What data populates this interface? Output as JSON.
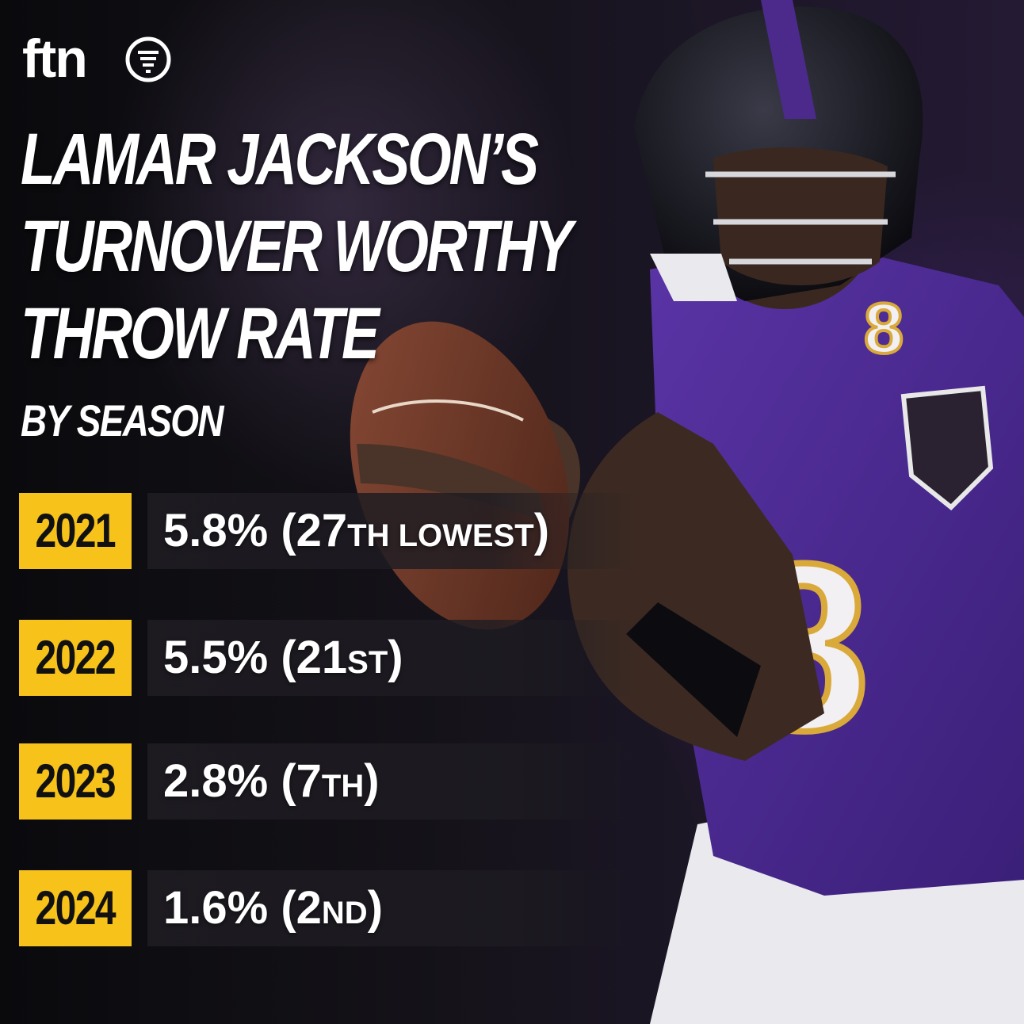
{
  "brand": {
    "logo_text": "ftn"
  },
  "title": {
    "line1": "LAMAR JACKSON’S",
    "line2": "TURNOVER WORTHY",
    "line3": "THROW RATE",
    "subtitle": "BY SEASON"
  },
  "rows": [
    {
      "year": "2021",
      "value": "5.8%",
      "open": "(27",
      "suffix": "TH LOWEST",
      "close": ")"
    },
    {
      "year": "2022",
      "value": "5.5%",
      "open": "(21",
      "suffix": "ST",
      "close": ")"
    },
    {
      "year": "2023",
      "value": "2.8%",
      "open": "(7",
      "suffix": "TH",
      "close": ")"
    },
    {
      "year": "2024",
      "value": "1.6%",
      "open": "(2",
      "suffix": "ND",
      "close": ")"
    }
  ],
  "colors": {
    "accent": "#f7c21a",
    "row_bg": "#1e1c22",
    "jersey": "#4b2a8c"
  },
  "photo": {
    "jersey_number": "8"
  }
}
